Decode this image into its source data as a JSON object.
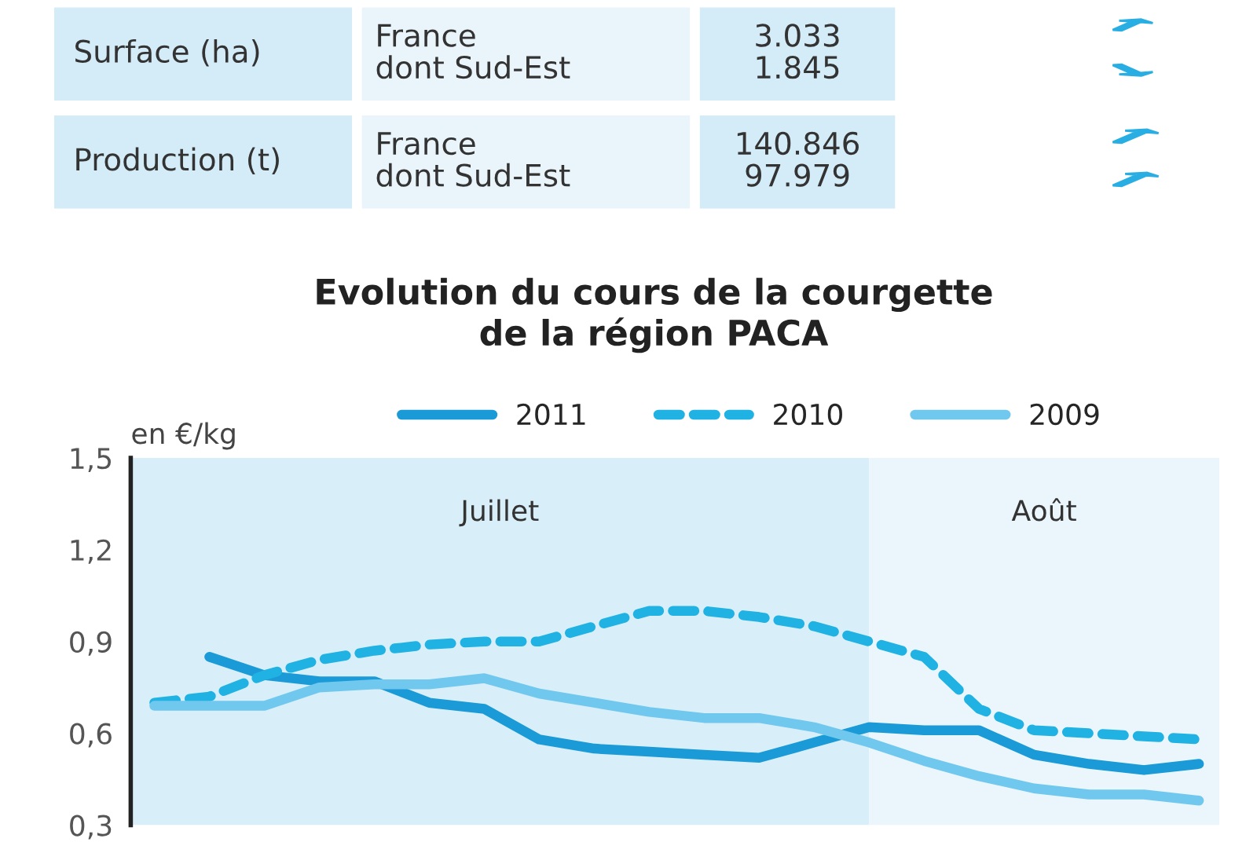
{
  "chart_data": {
    "type": "line",
    "title": "Evolution du cours de la courgette\nde la région PACA",
    "ylabel": "en €/kg",
    "annotations": [
      "Surface (ha)",
      "France\ndont Sud-Est",
      "3.033\n1.845",
      "Production (t)",
      "France\ndont Sud-Est",
      "140.846\n97.979",
      "Juillet",
      "Août"
    ],
    "categories": [
      null,
      null,
      null,
      null,
      null,
      null,
      null,
      null,
      null,
      null,
      null,
      null,
      null,
      null,
      null,
      null,
      null,
      null,
      null,
      null
    ],
    "ylim": [
      0.3,
      1.5
    ],
    "yticks": [
      {
        "value": 0.3,
        "label": "0,3"
      },
      {
        "value": 0.6,
        "label": "0,6"
      },
      {
        "value": 0.9,
        "label": "0,9"
      },
      {
        "value": 1.2,
        "label": "1,2"
      },
      {
        "value": 1.5,
        "label": "1,5"
      }
    ],
    "series": [
      {
        "name": "2011",
        "color": "#1a9ad6",
        "line_style": "solid",
        "values": [
          null,
          0.85,
          0.79,
          0.77,
          0.77,
          0.7,
          0.68,
          0.58,
          0.55,
          0.54,
          0.53,
          0.52,
          0.57,
          0.62,
          0.61,
          0.61,
          0.53,
          0.5,
          0.48,
          0.5
        ]
      },
      {
        "name": "2010",
        "color": "#20b2e3",
        "line_style": "dashed",
        "values": [
          0.7,
          0.72,
          0.79,
          0.84,
          0.87,
          0.89,
          0.9,
          0.9,
          0.95,
          1.0,
          1.0,
          0.98,
          0.95,
          0.9,
          0.85,
          0.68,
          0.61,
          0.6,
          0.59,
          0.58
        ]
      },
      {
        "name": "2009",
        "color": "#70c8ee",
        "line_style": "solid",
        "values": [
          0.69,
          0.69,
          0.69,
          0.75,
          0.76,
          0.76,
          0.78,
          0.73,
          0.7,
          0.67,
          0.65,
          0.65,
          0.62,
          0.57,
          0.51,
          0.46,
          0.42,
          0.4,
          0.4,
          0.38
        ]
      }
    ],
    "legend": "top",
    "grid": false
  }
}
